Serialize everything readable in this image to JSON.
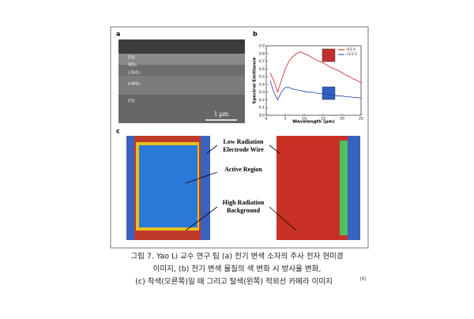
{
  "figure": {
    "panel_labels": [
      "a",
      "b",
      "c"
    ],
    "sem": {
      "layers": [
        "ITO",
        "WO₃",
        "LiTaO₃",
        "a-WO₃",
        "ITO"
      ],
      "scale_bar": "1 μm"
    },
    "thermal": {
      "low_radiation": [
        "Low Radiation",
        "Electrode Wire"
      ],
      "active_region": "Active Region",
      "high_radiation": [
        "High Radiation",
        "Background"
      ]
    },
    "caption": {
      "lines": [
        "그림 7. Yao Li 교수 연구 팀 (a) 전기 변색 소자의 주사 전자 현미경",
        "이미지, (b) 전기 변색 물질의 색 변화 시 방사율 변화,",
        "(c) 착색(오른쪽)일 때 그리고 탈색(왼쪽) 적외선 카메라 이미지"
      ],
      "reference": "[6]"
    }
  },
  "chart_data": {
    "type": "line",
    "x_label": "Wavelength (μm)",
    "y_label": "Spectral Emittance",
    "x": [
      1,
      2,
      3,
      4,
      5,
      6,
      7,
      8,
      9,
      10,
      11,
      12,
      13,
      14,
      15,
      16,
      17,
      18,
      19,
      20,
      21,
      22,
      23,
      24,
      25
    ],
    "series": [
      {
        "name": "-0.5 V",
        "color": "#d02020",
        "values": [
          0.55,
          0.45,
          0.3,
          0.45,
          0.6,
          0.7,
          0.76,
          0.8,
          0.82,
          0.8,
          0.78,
          0.75,
          0.72,
          0.7,
          0.68,
          0.65,
          0.62,
          0.6,
          0.58,
          0.55,
          0.52,
          0.5,
          0.47,
          0.45,
          0.42
        ]
      },
      {
        "name": "+2.5 V",
        "color": "#2040b0",
        "values": [
          0.45,
          0.3,
          0.2,
          0.3,
          0.36,
          0.36,
          0.34,
          0.33,
          0.32,
          0.31,
          0.3,
          0.3,
          0.29,
          0.28,
          0.28,
          0.27,
          0.26,
          0.26,
          0.25,
          0.25,
          0.24,
          0.24,
          0.23,
          0.23,
          0.22
        ]
      }
    ],
    "xlim": [
      0,
      25
    ],
    "xticks": [
      0,
      5,
      10,
      15,
      20,
      25
    ],
    "ylim": [
      0,
      0.9
    ],
    "yticks": [
      {
        "value": 0,
        "label": "0.0"
      },
      0.1,
      0.2,
      0.3,
      0.4,
      0.5,
      0.6,
      0.7,
      0.8,
      0.9
    ]
  }
}
